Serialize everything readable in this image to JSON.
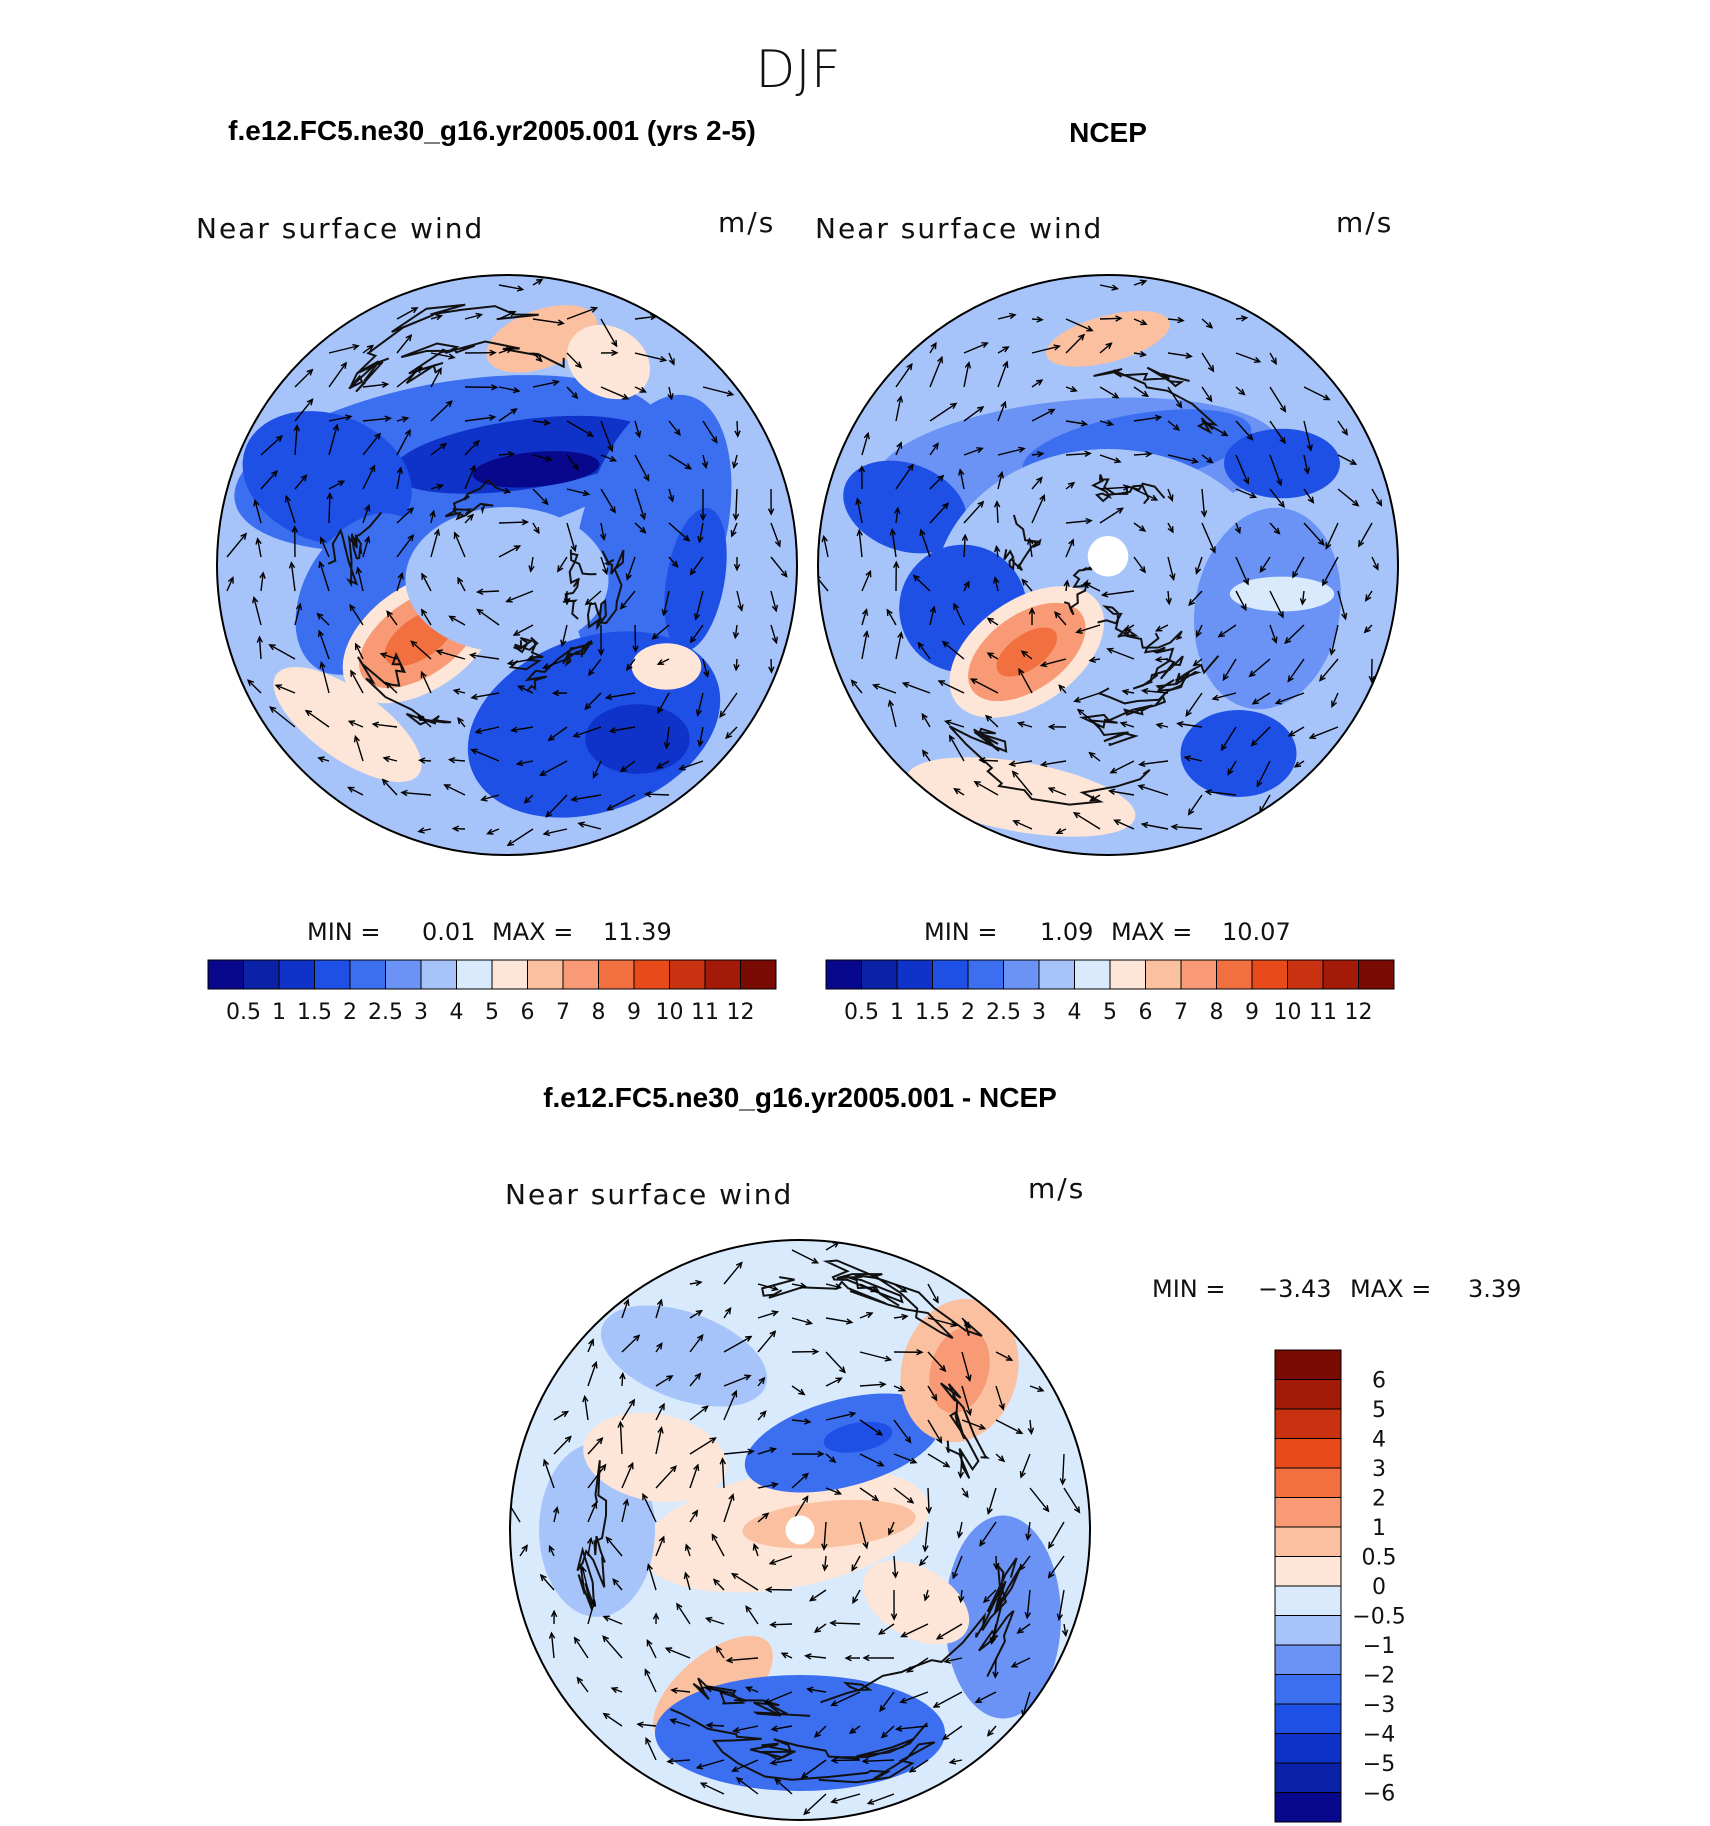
{
  "figure": {
    "season": "DJF"
  },
  "panels": [
    {
      "id": "model",
      "header": "f.e12.FC5.ne30_g16.yr2005.001 (yrs 2-5)",
      "field_label": "Near surface wind",
      "units": "m/s",
      "min_label": "MIN =",
      "min_value": "0.01",
      "max_label": "MAX =",
      "max_value": "11.39",
      "colorbar_ticks": [
        "0.5",
        "1",
        "1.5",
        "2",
        "2.5",
        "3",
        "4",
        "5",
        "6",
        "7",
        "8",
        "9",
        "10",
        "11",
        "12"
      ]
    },
    {
      "id": "obs",
      "header": "NCEP",
      "field_label": "Near surface wind",
      "units": "m/s",
      "min_label": "MIN =",
      "min_value": "1.09",
      "max_label": "MAX =",
      "max_value": "10.07",
      "colorbar_ticks": [
        "0.5",
        "1",
        "1.5",
        "2",
        "2.5",
        "3",
        "4",
        "5",
        "6",
        "7",
        "8",
        "9",
        "10",
        "11",
        "12"
      ]
    },
    {
      "id": "diff",
      "header": "f.e12.FC5.ne30_g16.yr2005.001 - NCEP",
      "field_label": "Near surface wind",
      "units": "m/s",
      "min_label": "MIN =",
      "min_value": "−3.43",
      "max_label": "MAX =",
      "max_value": "3.39",
      "colorbar_ticks": [
        "6",
        "5",
        "4",
        "3",
        "2",
        "1",
        "0.5",
        "0",
        "−0.5",
        "−1",
        "−2",
        "−3",
        "−4",
        "−5",
        "−6"
      ]
    }
  ],
  "chart_data": {
    "type": "heatmap",
    "projection": "north polar stereographic",
    "palette_abs": [
      "#08088c",
      "#0b22a8",
      "#0f33c8",
      "#1e50e6",
      "#3b6ff0",
      "#6a93f5",
      "#a7c4fa",
      "#d9eafd",
      "#fde6d7",
      "#fbc0a0",
      "#f79a75",
      "#f2703f",
      "#e84a1c",
      "#c83210",
      "#a31a08",
      "#7a0a04"
    ],
    "palette_diff": [
      "#08088c",
      "#0b22a8",
      "#0f33c8",
      "#1e50e6",
      "#3b6ff0",
      "#6a93f5",
      "#a7c4fa",
      "#d9eafd",
      "#fde6d7",
      "#fbc0a0",
      "#f79a75",
      "#f2703f",
      "#e84a1c",
      "#c83210",
      "#a31a08",
      "#7a0a04"
    ],
    "levels_abs": [
      0.5,
      1,
      1.5,
      2,
      2.5,
      3,
      4,
      5,
      6,
      7,
      8,
      9,
      10,
      11,
      12
    ],
    "levels_diff": [
      -6,
      -5,
      -4,
      -3,
      -2,
      -1,
      -0.5,
      0,
      0.5,
      1,
      2,
      3,
      4,
      5,
      6
    ],
    "panels": [
      {
        "id": "model",
        "min": 0.01,
        "max": 11.39
      },
      {
        "id": "obs",
        "min": 1.09,
        "max": 10.07
      },
      {
        "id": "diff",
        "min": -3.43,
        "max": 3.39
      }
    ]
  }
}
